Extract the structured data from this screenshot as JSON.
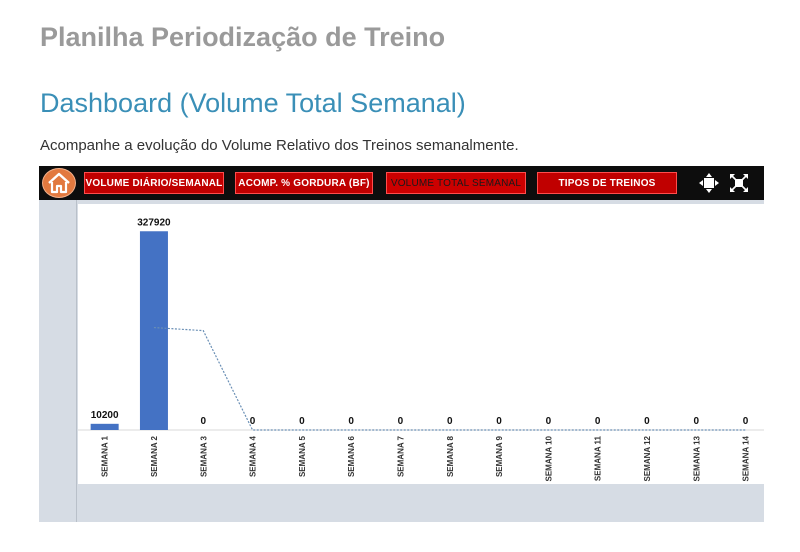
{
  "page": {
    "doc_title": "Planilha Periodização de Treino",
    "section_title": "Dashboard (Volume Total Semanal)",
    "description": "Acompanhe a evolução do Volume Relativo dos Treinos semanalmente."
  },
  "toolbar": {
    "home_icon": "home-icon",
    "buttons": [
      {
        "label": "VOLUME DIÁRIO/SEMANAL",
        "active": false
      },
      {
        "label": "ACOMP. % GORDURA (BF)",
        "active": false
      },
      {
        "label": "VOLUME TOTAL SEMANAL",
        "active": true
      },
      {
        "label": "TIPOS DE TREINOS",
        "active": false
      }
    ],
    "tools": [
      "move-icon",
      "fit-screen-icon"
    ]
  },
  "colors": {
    "bar": "#4472c4",
    "trendline": "#6a8fb5",
    "nav_button": "#c00000",
    "home_button": "#e2793f"
  },
  "chart_data": {
    "type": "bar",
    "title": "",
    "xlabel": "",
    "ylabel": "",
    "categories": [
      "SEMANA 1",
      "SEMANA 2",
      "SEMANA 3",
      "SEMANA 4",
      "SEMANA 5",
      "SEMANA 6",
      "SEMANA 7",
      "SEMANA 8",
      "SEMANA 9",
      "SEMANA 10",
      "SEMANA 11",
      "SEMANA 12",
      "SEMANA 13",
      "SEMANA 14"
    ],
    "values": [
      10200,
      327920,
      0,
      0,
      0,
      0,
      0,
      0,
      0,
      0,
      0,
      0,
      0,
      0
    ],
    "ylim": [
      0,
      330000
    ],
    "trendline": "moving-average",
    "grid": false,
    "legend": "none",
    "data_labels": true
  }
}
